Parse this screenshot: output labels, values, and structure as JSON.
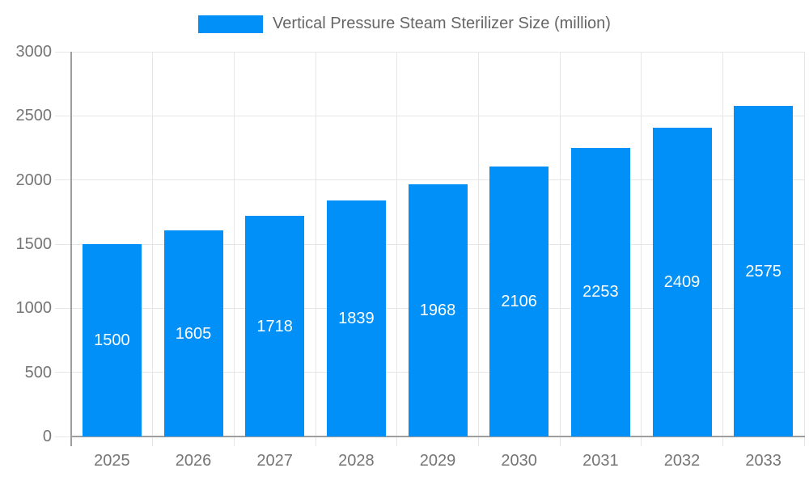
{
  "legend": {
    "label": "Vertical Pressure Steam Sterilizer Size (million)"
  },
  "chart_data": {
    "type": "bar",
    "title": "Vertical Pressure Steam Sterilizer Size (million)",
    "categories": [
      "2025",
      "2026",
      "2027",
      "2028",
      "2029",
      "2030",
      "2031",
      "2032",
      "2033"
    ],
    "series": [
      {
        "name": "Vertical Pressure Steam Sterilizer Size (million)",
        "values": [
          1500,
          1605,
          1718,
          1839,
          1968,
          2106,
          2253,
          2409,
          2575
        ]
      }
    ],
    "xlabel": "",
    "ylabel": "",
    "ylim": [
      0,
      3000
    ],
    "yticks": [
      0,
      500,
      1000,
      1500,
      2000,
      2500,
      3000
    ],
    "grid": true,
    "legend_position": "top",
    "value_labels": "inside-center-white"
  },
  "colors": {
    "bar": "#0090F8",
    "grid_line": "#e6e6e6",
    "axis_line": "#9e9e9e",
    "axis_text": "#757575",
    "legend_text": "#666666",
    "value_label": "#ffffff",
    "background": "#ffffff"
  }
}
